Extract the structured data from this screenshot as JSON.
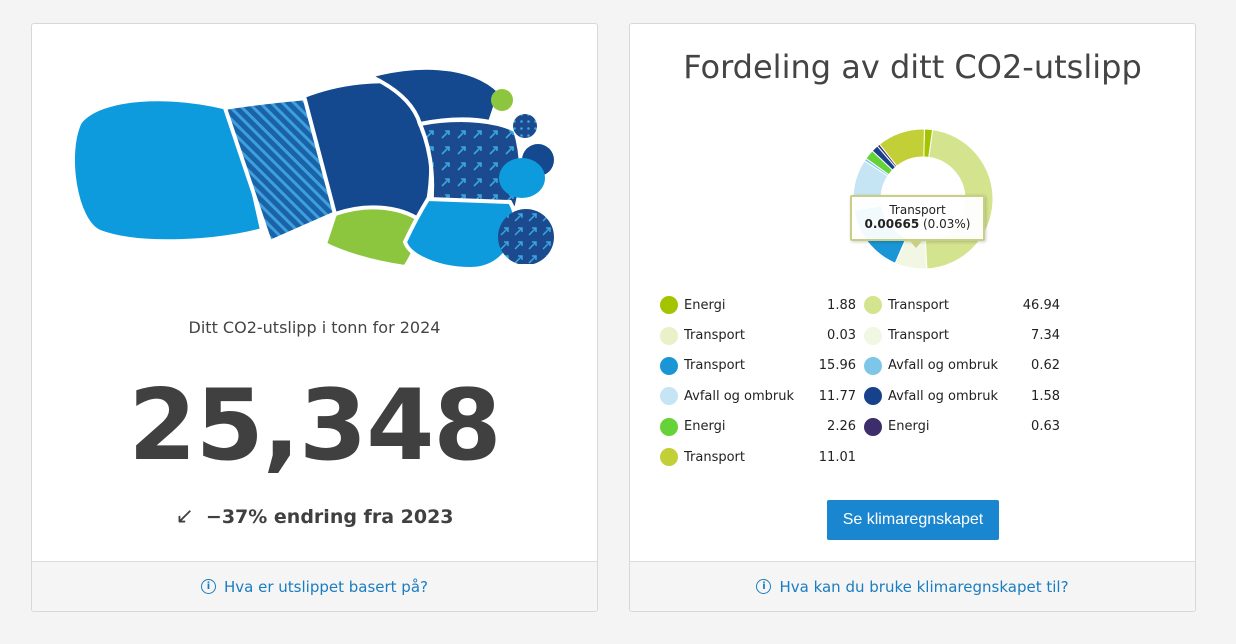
{
  "left_card": {
    "emission_label": "Ditt CO2-utslipp i tonn for 2024",
    "emission_value": "25,348",
    "change_arrow": "↙",
    "change_text": "−37% endring fra 2023",
    "footer_link": "Hva er utslippet basert på?",
    "info_icon": "info-circle-icon",
    "footprint_icon": "footprint-illustration-icon"
  },
  "right_card": {
    "title": "Fordeling av ditt CO2-utslipp",
    "tooltip": {
      "label": "Transport",
      "value": "0.00665",
      "percent": "(0.03%)"
    },
    "cta_label": "Se klimaregnskapet",
    "footer_link": "Hva kan du bruke klimaregnskapet til?",
    "info_icon": "info-circle-icon"
  },
  "chart_data": {
    "type": "pie",
    "variant": "donut",
    "legend_placement": "bottom",
    "series": [
      {
        "name": "Energi",
        "value": 1.88,
        "color": "#a4c400"
      },
      {
        "name": "Transport",
        "value": 46.94,
        "color": "#d4e38d"
      },
      {
        "name": "Transport",
        "value": 0.03,
        "color": "#e8f1c8"
      },
      {
        "name": "Transport",
        "value": 7.34,
        "color": "#f2f7e3"
      },
      {
        "name": "Transport",
        "value": 15.96,
        "color": "#1a96d6"
      },
      {
        "name": "Avfall og ombruk",
        "value": 0.62,
        "color": "#7ec6e8"
      },
      {
        "name": "Avfall og ombruk",
        "value": 11.77,
        "color": "#c5e4f4"
      },
      {
        "name": "Avfall og ombruk",
        "value": 1.58,
        "color": "#18418c"
      },
      {
        "name": "Energi",
        "value": 2.26,
        "color": "#66d23a"
      },
      {
        "name": "Energi",
        "value": 0.63,
        "color": "#3d2d6b"
      },
      {
        "name": "Transport",
        "value": 11.01,
        "color": "#c2cf37"
      }
    ],
    "legend_rows": [
      {
        "label": "Energi",
        "value": "1.88",
        "color": "#a4c400"
      },
      {
        "label": "Transport",
        "value": "46.94",
        "color": "#d4e38d"
      },
      {
        "label": "Transport",
        "value": "0.03",
        "color": "#e8f1c8"
      },
      {
        "label": "Transport",
        "value": "7.34",
        "color": "#f2f7e3"
      },
      {
        "label": "Transport",
        "value": "15.96",
        "color": "#1a96d6"
      },
      {
        "label": "Avfall og ombruk",
        "value": "0.62",
        "color": "#7ec6e8"
      },
      {
        "label": "Avfall og ombruk",
        "value": "11.77",
        "color": "#c5e4f4"
      },
      {
        "label": "Avfall og ombruk",
        "value": "1.58",
        "color": "#18418c"
      },
      {
        "label": "Energi",
        "value": "2.26",
        "color": "#66d23a"
      },
      {
        "label": "Energi",
        "value": "0.63",
        "color": "#3d2d6b"
      },
      {
        "label": "Transport",
        "value": "11.01",
        "color": "#c2cf37"
      }
    ],
    "donut_order": [
      0,
      1,
      3,
      2,
      4,
      6,
      5,
      8,
      7,
      9,
      10
    ]
  }
}
